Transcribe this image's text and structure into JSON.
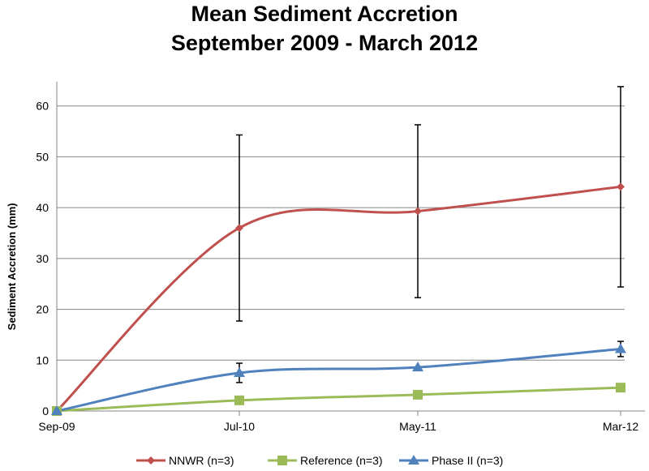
{
  "chart_data": {
    "type": "line",
    "title": [
      "Mean Sediment Accretion",
      "September 2009 - March 2012"
    ],
    "xlabel": "",
    "ylabel": "Sediment Accretion (mm)",
    "categories": [
      "Sep-09",
      "Jul-10",
      "May-11",
      "Mar-12"
    ],
    "ylim": [
      0,
      70
    ],
    "yticks": [
      0,
      10,
      20,
      30,
      40,
      50,
      60
    ],
    "grid": true,
    "smooth": true,
    "legend_position": "bottom",
    "series": [
      {
        "name": "NNWR (n=3)",
        "color": "#C0504D",
        "marker": "diamond",
        "values": [
          0,
          36.0,
          39.3,
          44.1
        ],
        "error": [
          0,
          18.3,
          17.0,
          19.7
        ]
      },
      {
        "name": "Reference (n=3)",
        "color": "#9BBB59",
        "marker": "square",
        "values": [
          0,
          2.1,
          3.2,
          4.6
        ],
        "error": [
          0,
          0,
          0,
          0
        ]
      },
      {
        "name": "Phase II (n=3)",
        "color": "#4F81BD",
        "marker": "triangle",
        "values": [
          0,
          7.5,
          8.6,
          12.2
        ],
        "error": [
          0,
          1.9,
          0,
          1.5
        ]
      }
    ]
  }
}
